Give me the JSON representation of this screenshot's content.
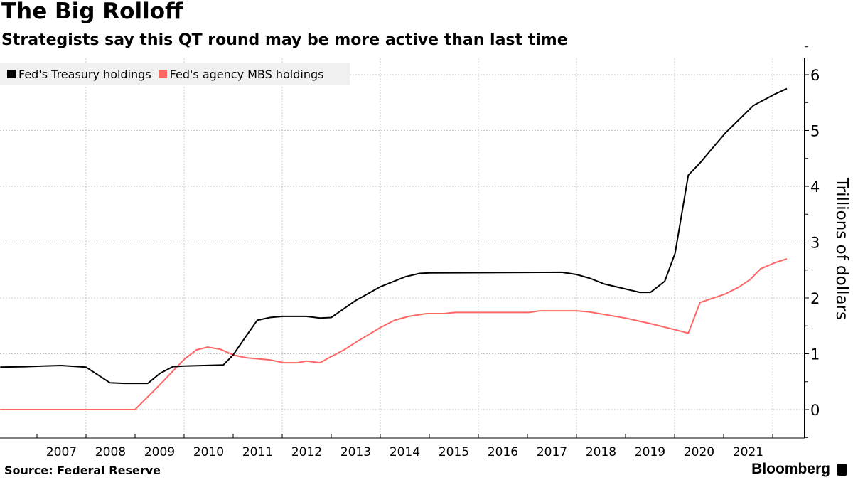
{
  "header": {
    "title": "The Big Rolloff",
    "subtitle": "Strategists say this QT round may be more active than last time"
  },
  "footer": {
    "source": "Source: Federal Reserve",
    "brand": "Bloomberg",
    "brand_icon": "bloomberg-chart-icon"
  },
  "chart_data": {
    "type": "line",
    "title": "The Big Rolloff",
    "subtitle": "Strategists say this QT round may be more active than last time",
    "xlabel": "",
    "ylabel": "Trillions of dollars",
    "xlim": [
      2006.25,
      2022.3
    ],
    "ylim": [
      -0.5,
      6.3
    ],
    "x_ticks": [
      "2007",
      "2008",
      "2009",
      "2010",
      "2011",
      "2012",
      "2013",
      "2014",
      "2015",
      "2016",
      "2017",
      "2018",
      "2019",
      "2020",
      "2021"
    ],
    "y_ticks": [
      0,
      1,
      2,
      3,
      4,
      5,
      6
    ],
    "grid": true,
    "y_axis_side": "right",
    "legend_position": "top-left",
    "series": [
      {
        "name": "Fed's Treasury holdings",
        "color": "#000000",
        "x": [
          2006.25,
          2006.75,
          2007.12,
          2007.49,
          2008.0,
          2008.49,
          2008.78,
          2009.26,
          2009.51,
          2009.77,
          2010.0,
          2010.8,
          2011.0,
          2011.25,
          2011.49,
          2011.75,
          2012.01,
          2012.49,
          2012.77,
          2013.0,
          2013.49,
          2014.0,
          2014.51,
          2014.8,
          2015.0,
          2017.7,
          2018.0,
          2018.28,
          2018.57,
          2019.0,
          2019.29,
          2019.51,
          2019.8,
          2020.01,
          2020.28,
          2020.52,
          2020.74,
          2021.03,
          2021.32,
          2021.61,
          2022.04,
          2022.29
        ],
        "values": [
          0.76,
          0.77,
          0.78,
          0.79,
          0.76,
          0.48,
          0.47,
          0.47,
          0.65,
          0.77,
          0.78,
          0.8,
          0.98,
          1.3,
          1.6,
          1.65,
          1.67,
          1.67,
          1.64,
          1.65,
          1.95,
          2.2,
          2.38,
          2.44,
          2.45,
          2.46,
          2.42,
          2.35,
          2.25,
          2.16,
          2.1,
          2.1,
          2.3,
          2.8,
          4.2,
          4.42,
          4.65,
          4.95,
          5.2,
          5.45,
          5.65,
          5.75
        ]
      },
      {
        "name": "Fed's agency MBS holdings",
        "color": "#ff6666",
        "x": [
          2006.25,
          2009.0,
          2009.51,
          2010.0,
          2010.25,
          2010.48,
          2010.74,
          2011.0,
          2011.25,
          2011.75,
          2012.04,
          2012.3,
          2012.5,
          2012.77,
          2013.0,
          2013.28,
          2013.49,
          2014.0,
          2014.29,
          2014.58,
          2014.94,
          2015.3,
          2015.52,
          2017.03,
          2017.25,
          2018.0,
          2018.26,
          2019.0,
          2019.51,
          2020.01,
          2020.28,
          2020.52,
          2021.03,
          2021.32,
          2021.54,
          2021.75,
          2022.04,
          2022.29
        ],
        "values": [
          0,
          0,
          0.45,
          0.9,
          1.07,
          1.12,
          1.08,
          0.98,
          0.93,
          0.89,
          0.84,
          0.84,
          0.87,
          0.84,
          0.95,
          1.08,
          1.2,
          1.47,
          1.6,
          1.67,
          1.72,
          1.72,
          1.74,
          1.74,
          1.77,
          1.77,
          1.75,
          1.64,
          1.54,
          1.43,
          1.37,
          1.92,
          2.07,
          2.2,
          2.33,
          2.52,
          2.63,
          2.7
        ]
      }
    ]
  }
}
